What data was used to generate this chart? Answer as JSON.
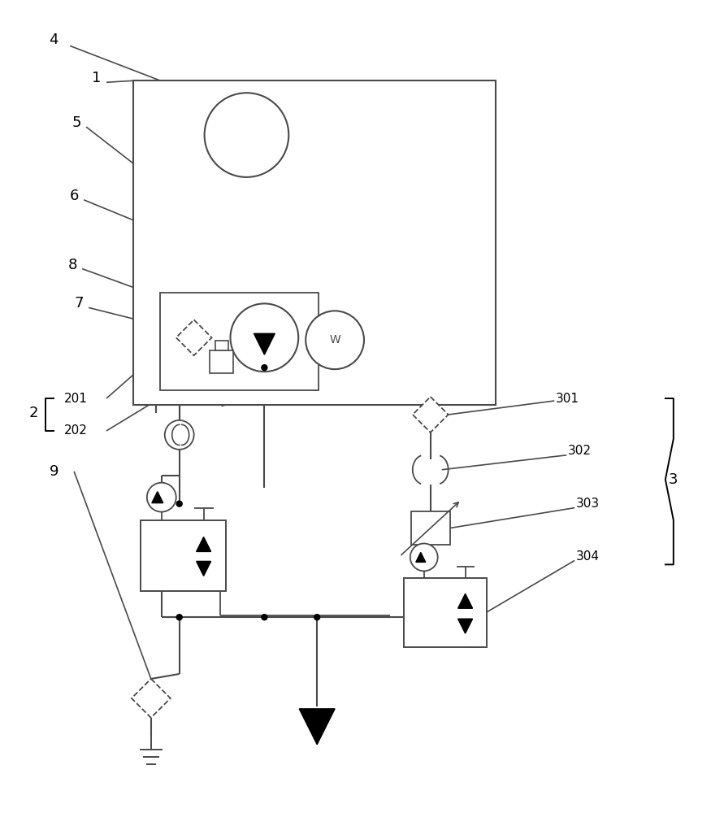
{
  "bg_color": "#ffffff",
  "lc": "#4a4a4a",
  "lw": 1.4,
  "fig_w": 8.91,
  "fig_h": 10.0,
  "dpi": 100
}
